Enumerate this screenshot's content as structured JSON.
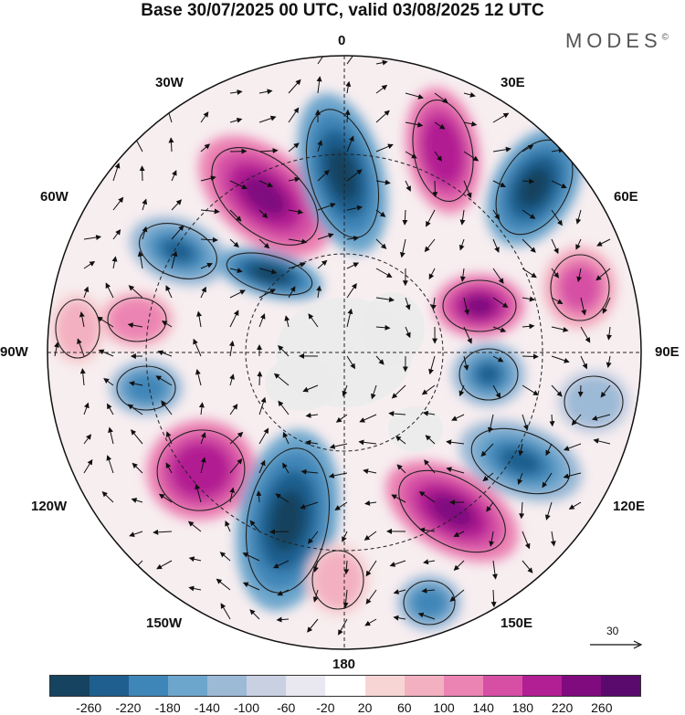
{
  "title": "Base 30/07/2025 00 UTC, valid 03/08/2025 12 UTC",
  "brand": "MODES",
  "brand_mark": "©",
  "longitude_labels": {
    "lon_0": "0",
    "lon_30e": "30E",
    "lon_60e": "60E",
    "lon_90e": "90E",
    "lon_120e": "120E",
    "lon_150e": "150E",
    "lon_180": "180",
    "lon_150w": "150W",
    "lon_120w": "120W",
    "lon_90w": "90W",
    "lon_60w": "60W",
    "lon_30w": "30W"
  },
  "reference_vector": "30",
  "colorbar": {
    "ticks": [
      "-260",
      "-220",
      "-180",
      "-140",
      "-100",
      "-60",
      "-20",
      "20",
      "60",
      "100",
      "140",
      "180",
      "220",
      "260"
    ],
    "colors": [
      "#16435f",
      "#1f5f8f",
      "#3f86b8",
      "#6da6cc",
      "#9cb9d6",
      "#c8d0e2",
      "#e9e8f1",
      "#ffffff",
      "#f7d5d5",
      "#f3b0c0",
      "#ec84b3",
      "#d64fa5",
      "#b21e93",
      "#7f0b7f",
      "#5a0a6d"
    ]
  },
  "colors": {
    "land": "#ebebeb",
    "outline": "#222222"
  }
}
